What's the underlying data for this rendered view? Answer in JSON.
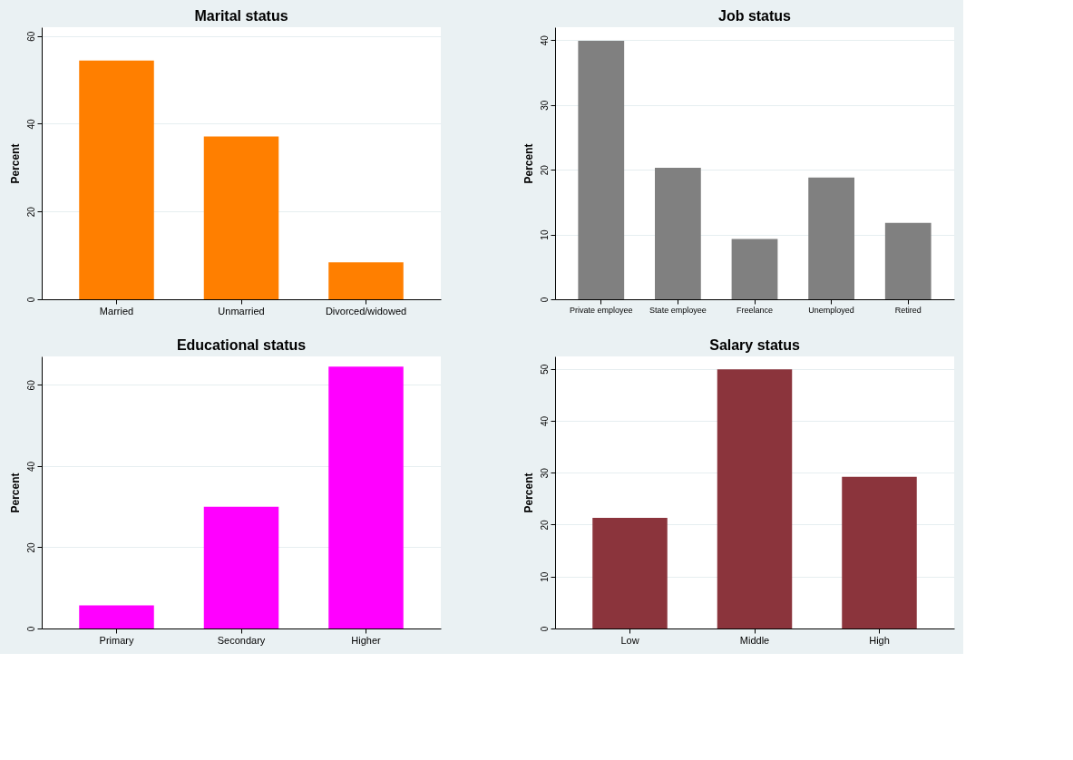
{
  "chart_data": [
    {
      "type": "bar",
      "title": "Marital status",
      "ylabel": "Percent",
      "categories": [
        "Married",
        "Unmarried",
        "Divorced/widowed"
      ],
      "values": [
        54.4,
        37.1,
        8.4
      ],
      "color": "#ff7f00",
      "ylim": [
        0,
        62
      ],
      "yticks": [
        0,
        20,
        40,
        60
      ],
      "grid": "y"
    },
    {
      "type": "bar",
      "title": "Job status",
      "ylabel": "Percent",
      "categories": [
        "Private employee",
        "State employee",
        "Freelance",
        "Unemployed",
        "Retired"
      ],
      "values": [
        39.9,
        20.3,
        9.3,
        18.8,
        11.8
      ],
      "color": "#808080",
      "ylim": [
        0,
        42
      ],
      "yticks": [
        0,
        10,
        20,
        30,
        40
      ],
      "grid": "y"
    },
    {
      "type": "bar",
      "title": "Educational status",
      "ylabel": "Percent",
      "categories": [
        "Primary",
        "Secondary",
        "Higher"
      ],
      "values": [
        5.7,
        30.0,
        64.5
      ],
      "color": "#ff00ff",
      "ylim": [
        0,
        67
      ],
      "yticks": [
        0,
        20,
        40,
        60
      ],
      "grid": "y"
    },
    {
      "type": "bar",
      "title": "Salary status",
      "ylabel": "Percent",
      "categories": [
        "Low",
        "Middle",
        "High"
      ],
      "values": [
        21.3,
        49.9,
        29.2
      ],
      "color": "#8b343c",
      "ylim": [
        0,
        52.4
      ],
      "yticks": [
        0,
        10,
        20,
        30,
        40,
        50
      ],
      "grid": "y"
    }
  ]
}
